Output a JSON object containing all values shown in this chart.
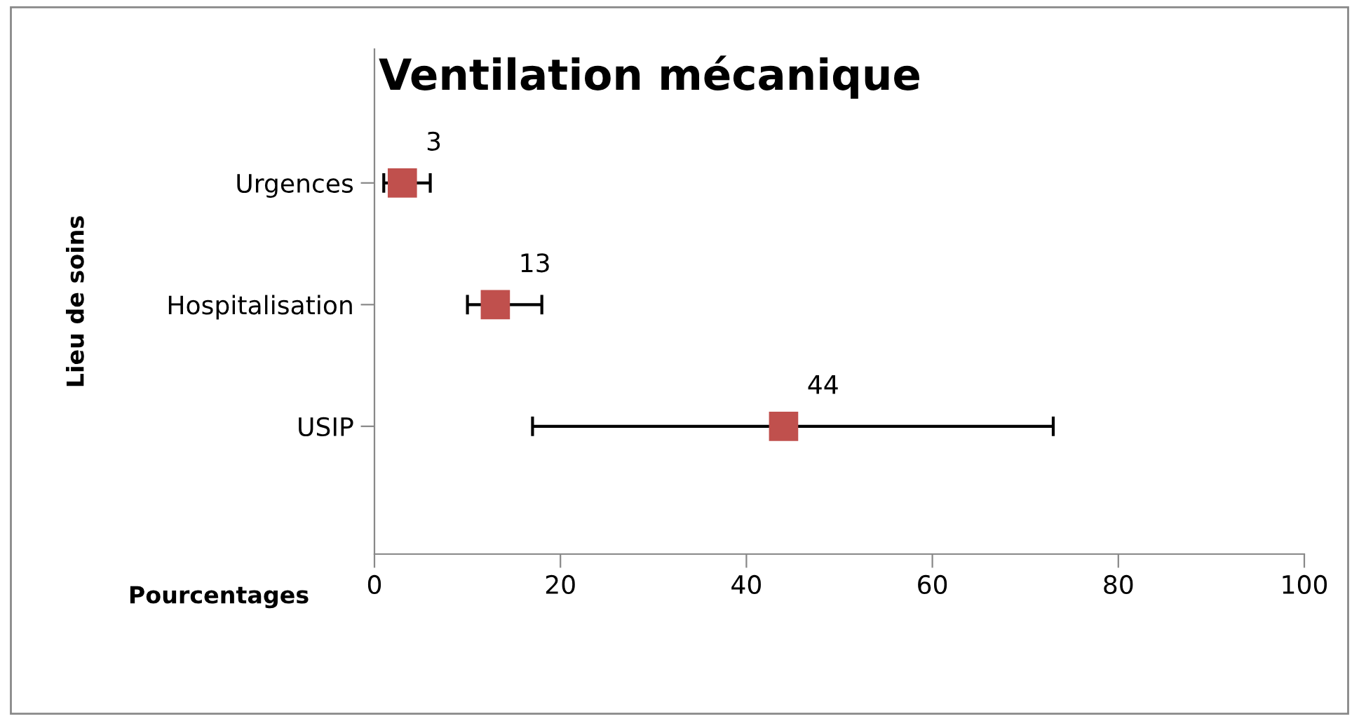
{
  "chart_data": {
    "type": "scatter",
    "orientation": "horizontal",
    "title": "Ventilation mécanique",
    "xlabel": "Pourcentages",
    "ylabel": "Lieu de soins",
    "categories": [
      "Urgences",
      "Hospitalisation",
      "USIP"
    ],
    "series": [
      {
        "color": "#c0504d",
        "values": [
          3,
          13,
          44
        ],
        "errors": [
          [
            1,
            6
          ],
          [
            10,
            18
          ],
          [
            17,
            73
          ]
        ]
      }
    ],
    "xlim": [
      0,
      100
    ],
    "xticks": [
      0,
      20,
      40,
      60,
      80,
      100
    ],
    "marker": "square",
    "data_labels": true,
    "grid": false,
    "legend": false
  }
}
